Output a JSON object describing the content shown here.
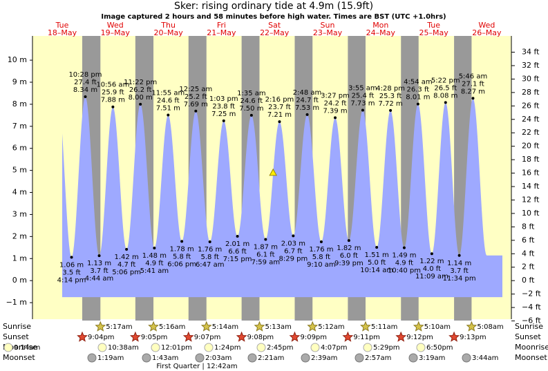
{
  "chart_data": {
    "type": "tide",
    "title": "Sker: rising  ordinary tide at 4.9m (15.9ft)",
    "subtitle": "Image captured 2 hours and 58 minutes before high water. Times are BST (UTC +1.0hrs)",
    "current_level": 4.9,
    "ylim": [
      -1.75,
      11.1
    ],
    "yticks": [
      {
        "value": -1,
        "label": "−1 m"
      },
      {
        "value": 0,
        "label": "0 m"
      },
      {
        "value": 1,
        "label": "1 m"
      },
      {
        "value": 2,
        "label": "2 m"
      },
      {
        "value": 3,
        "label": "3 m"
      },
      {
        "value": 4,
        "label": "4 m"
      },
      {
        "value": 5,
        "label": "5 m"
      },
      {
        "value": 6,
        "label": "6 m"
      },
      {
        "value": 7,
        "label": "7 m"
      },
      {
        "value": 8,
        "label": "8 m"
      },
      {
        "value": 9,
        "label": "9 m"
      },
      {
        "value": 10,
        "label": "10 m"
      }
    ],
    "y2lim": [
      -5.74,
      36.42
    ],
    "y2ticks": [
      {
        "value": -6,
        "label": "−6 ft"
      },
      {
        "value": -4,
        "label": "−4 ft"
      },
      {
        "value": -2,
        "label": "−2 ft"
      },
      {
        "value": 0,
        "label": "0 ft"
      },
      {
        "value": 2,
        "label": "2 ft"
      },
      {
        "value": 4,
        "label": "4 ft"
      },
      {
        "value": 6,
        "label": "6 ft"
      },
      {
        "value": 8,
        "label": "8 ft"
      },
      {
        "value": 10,
        "label": "10 ft"
      },
      {
        "value": 12,
        "label": "12 ft"
      },
      {
        "value": 14,
        "label": "14 ft"
      },
      {
        "value": 16,
        "label": "16 ft"
      },
      {
        "value": 18,
        "label": "18 ft"
      },
      {
        "value": 20,
        "label": "20 ft"
      },
      {
        "value": 22,
        "label": "22 ft"
      },
      {
        "value": 24,
        "label": "24 ft"
      },
      {
        "value": 26,
        "label": "26 ft"
      },
      {
        "value": 28,
        "label": "28 ft"
      },
      {
        "value": 30,
        "label": "30 ft"
      },
      {
        "value": 32,
        "label": "32 ft"
      },
      {
        "value": 34,
        "label": "34 ft"
      }
    ],
    "days": [
      {
        "weekday": "Tue",
        "date": "18–May",
        "tides": [
          {
            "time": "4:14 pm",
            "value": 1.06,
            "value_label": "1.06 m",
            "ft_label": "3.5 ft",
            "kind": "low"
          },
          {
            "time": "10:28 pm",
            "value": 8.34,
            "value_label": "8.34 m",
            "ft_label": "27.4 ft",
            "kind": "high"
          }
        ]
      },
      {
        "weekday": "Wed",
        "date": "19–May",
        "tides": [
          {
            "time": "4:44 am",
            "value": 1.13,
            "value_label": "1.13 m",
            "ft_label": "3.7 ft",
            "kind": "low"
          },
          {
            "time": "10:56 am",
            "value": 7.88,
            "value_label": "7.88 m",
            "ft_label": "25.9 ft",
            "kind": "high"
          },
          {
            "time": "5:06 pm",
            "value": 1.42,
            "value_label": "1.42 m",
            "ft_label": "4.7 ft",
            "kind": "low"
          },
          {
            "time": "11:22 pm",
            "value": 8.0,
            "value_label": "8.00 m",
            "ft_label": "26.2 ft",
            "kind": "high"
          }
        ]
      },
      {
        "weekday": "Thu",
        "date": "20–May",
        "tides": [
          {
            "time": "5:41 am",
            "value": 1.48,
            "value_label": "1.48 m",
            "ft_label": "4.9 ft",
            "kind": "low"
          },
          {
            "time": "11:55 am",
            "value": 7.51,
            "value_label": "7.51 m",
            "ft_label": "24.6 ft",
            "kind": "high"
          },
          {
            "time": "6:06 pm",
            "value": 1.78,
            "value_label": "1.78 m",
            "ft_label": "5.8 ft",
            "kind": "low"
          }
        ]
      },
      {
        "weekday": "Fri",
        "date": "21–May",
        "tides": [
          {
            "time": "12:25 am",
            "value": 7.69,
            "value_label": "7.69 m",
            "ft_label": "25.2 ft",
            "kind": "high"
          },
          {
            "time": "6:47 am",
            "value": 1.76,
            "value_label": "1.76 m",
            "ft_label": "5.8 ft",
            "kind": "low"
          },
          {
            "time": "1:03 pm",
            "value": 7.25,
            "value_label": "7.25 m",
            "ft_label": "23.8 ft",
            "kind": "high"
          },
          {
            "time": "7:15 pm",
            "value": 2.01,
            "value_label": "2.01 m",
            "ft_label": "6.6 ft",
            "kind": "low"
          }
        ]
      },
      {
        "weekday": "Sat",
        "date": "22–May",
        "tides": [
          {
            "time": "1:35 am",
            "value": 7.5,
            "value_label": "7.50 m",
            "ft_label": "24.6 ft",
            "kind": "high"
          },
          {
            "time": "7:59 am",
            "value": 1.87,
            "value_label": "1.87 m",
            "ft_label": "6.1 ft",
            "kind": "low"
          },
          {
            "time": "2:16 pm",
            "value": 7.21,
            "value_label": "7.21 m",
            "ft_label": "23.7 ft",
            "kind": "high"
          },
          {
            "time": "8:29 pm",
            "value": 2.03,
            "value_label": "2.03 m",
            "ft_label": "6.7 ft",
            "kind": "low"
          }
        ]
      },
      {
        "weekday": "Sun",
        "date": "23–May",
        "tides": [
          {
            "time": "2:48 am",
            "value": 7.53,
            "value_label": "7.53 m",
            "ft_label": "24.7 ft",
            "kind": "high"
          },
          {
            "time": "9:10 am",
            "value": 1.76,
            "value_label": "1.76 m",
            "ft_label": "5.8 ft",
            "kind": "low"
          },
          {
            "time": "3:27 pm",
            "value": 7.39,
            "value_label": "7.39 m",
            "ft_label": "24.2 ft",
            "kind": "high"
          },
          {
            "time": "9:39 pm",
            "value": 1.82,
            "value_label": "1.82 m",
            "ft_label": "6.0 ft",
            "kind": "low"
          }
        ]
      },
      {
        "weekday": "Mon",
        "date": "24–May",
        "tides": [
          {
            "time": "3:55 am",
            "value": 7.73,
            "value_label": "7.73 m",
            "ft_label": "25.4 ft",
            "kind": "high"
          },
          {
            "time": "10:14 am",
            "value": 1.51,
            "value_label": "1.51 m",
            "ft_label": "5.0 ft",
            "kind": "low"
          },
          {
            "time": "4:28 pm",
            "value": 7.72,
            "value_label": "7.72 m",
            "ft_label": "25.3 ft",
            "kind": "high"
          },
          {
            "time": "10:40 pm",
            "value": 1.49,
            "value_label": "1.49 m",
            "ft_label": "4.9 ft",
            "kind": "low"
          }
        ]
      },
      {
        "weekday": "Tue",
        "date": "25–May",
        "tides": [
          {
            "time": "4:54 am",
            "value": 8.01,
            "value_label": "8.01 m",
            "ft_label": "26.3 ft",
            "kind": "high"
          },
          {
            "time": "11:09 am",
            "value": 1.22,
            "value_label": "1.22 m",
            "ft_label": "4.0 ft",
            "kind": "low"
          },
          {
            "time": "5:22 pm",
            "value": 8.08,
            "value_label": "8.08 m",
            "ft_label": "26.5 ft",
            "kind": "high"
          },
          {
            "time": "11:34 pm",
            "value": 1.14,
            "value_label": "1.14 m",
            "ft_label": "3.7 ft",
            "kind": "low"
          }
        ]
      },
      {
        "weekday": "Wed",
        "date": "26–May",
        "tides": [
          {
            "time": "5:46 am",
            "value": 8.27,
            "value_label": "8.27 m",
            "ft_label": "27.1 ft",
            "kind": "high"
          }
        ]
      }
    ],
    "rows": [
      {
        "name": "Sunrise",
        "times": [
          "5:17am",
          "5:16am",
          "5:14am",
          "5:13am",
          "5:12am",
          "5:11am",
          "5:10am",
          "5:08am"
        ]
      },
      {
        "name": "Sunset",
        "times": [
          "9:04pm",
          "9:05pm",
          "9:07pm",
          "9:08pm",
          "9:09pm",
          "9:11pm",
          "9:12pm",
          "9:13pm"
        ]
      },
      {
        "name": "Moonrise",
        "times": [
          "9:14am",
          "10:38am",
          "12:01pm",
          "1:24pm",
          "2:45pm",
          "4:07pm",
          "5:29pm",
          "6:50pm"
        ]
      },
      {
        "name": "Moonset",
        "times": [
          "1:19am",
          "1:43am",
          "2:03am",
          "2:21am",
          "2:39am",
          "2:57am",
          "3:19am",
          "3:44am"
        ]
      }
    ],
    "moon_phase": "First Quarter | 12:42am"
  }
}
